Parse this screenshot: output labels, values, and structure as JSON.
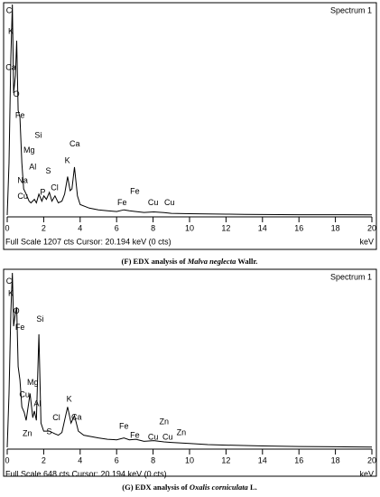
{
  "chart_data": [
    {
      "type": "line",
      "title": "Spectrum 1",
      "footer": "Full Scale 1207 cts  Cursor: 20.194 keV (0 cts)",
      "xlabel": "keV",
      "caption": [
        {
          "text": "(F) EDX analysis of "
        },
        {
          "text": "Malva neglecta",
          "italic": true
        },
        {
          "text": " Wallr."
        }
      ],
      "x": [
        0,
        0.1,
        0.2,
        0.28,
        0.35,
        0.45,
        0.52,
        0.6,
        0.7,
        0.8,
        0.9,
        1.04,
        1.2,
        1.3,
        1.49,
        1.6,
        1.74,
        1.9,
        2.01,
        2.15,
        2.31,
        2.45,
        2.62,
        2.8,
        3.0,
        3.15,
        3.31,
        3.45,
        3.55,
        3.69,
        3.85,
        4.0,
        4.5,
        5,
        5.5,
        6.0,
        6.4,
        6.7,
        7.06,
        7.5,
        8.04,
        8.6,
        9,
        10,
        11,
        12,
        13,
        14,
        16,
        18,
        20
      ],
      "values": [
        0,
        300,
        900,
        1207,
        700,
        800,
        1000,
        600,
        560,
        300,
        150,
        120,
        80,
        70,
        90,
        70,
        120,
        80,
        110,
        90,
        130,
        80,
        110,
        70,
        80,
        120,
        220,
        140,
        150,
        275,
        110,
        60,
        40,
        30,
        25,
        20,
        30,
        25,
        20,
        15,
        18,
        14,
        10,
        8,
        6,
        5,
        4,
        3,
        2,
        2,
        1
      ],
      "color": "#000000",
      "xlim": [
        0,
        20
      ],
      "xticks": [
        0,
        2,
        4,
        6,
        8,
        10,
        12,
        14,
        16,
        18,
        20
      ],
      "ylim": [
        0,
        1207
      ],
      "peaks": [
        {
          "label": "C",
          "x": 0.1,
          "y": 1170
        },
        {
          "label": "K",
          "x": 0.2,
          "y": 1050
        },
        {
          "label": "Ca",
          "x": 0.2,
          "y": 845
        },
        {
          "label": "O",
          "x": 0.5,
          "y": 690
        },
        {
          "label": "Fe",
          "x": 0.7,
          "y": 570
        },
        {
          "label": "Si",
          "x": 1.7,
          "y": 455
        },
        {
          "label": "Mg",
          "x": 1.2,
          "y": 370
        },
        {
          "label": "Al",
          "x": 1.4,
          "y": 275
        },
        {
          "label": "Na",
          "x": 0.85,
          "y": 195
        },
        {
          "label": "Cu",
          "x": 0.85,
          "y": 105
        },
        {
          "label": "P",
          "x": 1.95,
          "y": 130
        },
        {
          "label": "S",
          "x": 2.25,
          "y": 250
        },
        {
          "label": "Cl",
          "x": 2.6,
          "y": 155
        },
        {
          "label": "K",
          "x": 3.3,
          "y": 310
        },
        {
          "label": "Ca",
          "x": 3.7,
          "y": 405
        },
        {
          "label": "Fe",
          "x": 6.3,
          "y": 70
        },
        {
          "label": "Fe",
          "x": 7.0,
          "y": 135
        },
        {
          "label": "Cu",
          "x": 8.0,
          "y": 70
        },
        {
          "label": "Cu",
          "x": 8.9,
          "y": 70
        }
      ]
    },
    {
      "type": "line",
      "title": "Spectrum 1",
      "footer": "Full Scale 648 cts  Cursor: 20.194 keV (0 cts)",
      "xlabel": "keV",
      "caption": [
        {
          "text": "(G) EDX analysis of "
        },
        {
          "text": "Oxalis corniculata",
          "italic": true
        },
        {
          "text": " L."
        }
      ],
      "x": [
        0,
        0.1,
        0.2,
        0.28,
        0.35,
        0.45,
        0.52,
        0.6,
        0.7,
        0.8,
        0.93,
        1.04,
        1.25,
        1.4,
        1.49,
        1.6,
        1.74,
        1.85,
        2.0,
        2.31,
        2.62,
        2.8,
        3.0,
        3.31,
        3.5,
        3.69,
        3.9,
        4.2,
        5,
        5.5,
        6.0,
        6.4,
        6.7,
        7.06,
        7.5,
        8.04,
        8.6,
        9,
        10,
        11,
        12,
        14,
        16,
        18,
        20
      ],
      "values": [
        0,
        200,
        500,
        648,
        450,
        500,
        520,
        300,
        250,
        150,
        130,
        100,
        200,
        110,
        135,
        100,
        420,
        90,
        60,
        60,
        50,
        45,
        55,
        150,
        90,
        118,
        60,
        45,
        35,
        30,
        28,
        35,
        28,
        30,
        22,
        25,
        20,
        18,
        14,
        10,
        8,
        5,
        3,
        2,
        1
      ],
      "color": "#000000",
      "xlim": [
        0,
        20
      ],
      "xticks": [
        0,
        2,
        4,
        6,
        8,
        10,
        12,
        14,
        16,
        18,
        20
      ],
      "ylim": [
        0,
        648
      ],
      "peaks": [
        {
          "label": "C",
          "x": 0.1,
          "y": 615
        },
        {
          "label": "K",
          "x": 0.2,
          "y": 570
        },
        {
          "label": "O",
          "x": 0.5,
          "y": 505
        },
        {
          "label": "Fe",
          "x": 0.7,
          "y": 445
        },
        {
          "label": "Si",
          "x": 1.8,
          "y": 475
        },
        {
          "label": "Mg",
          "x": 1.4,
          "y": 240
        },
        {
          "label": "Cu",
          "x": 0.95,
          "y": 195
        },
        {
          "label": "Al",
          "x": 1.65,
          "y": 160
        },
        {
          "label": "Zn",
          "x": 1.1,
          "y": 50
        },
        {
          "label": "Cl",
          "x": 2.7,
          "y": 108
        },
        {
          "label": "S",
          "x": 2.3,
          "y": 57
        },
        {
          "label": "K",
          "x": 3.4,
          "y": 178
        },
        {
          "label": "Ca",
          "x": 3.8,
          "y": 110
        },
        {
          "label": "Fe",
          "x": 6.4,
          "y": 77
        },
        {
          "label": "Fe",
          "x": 7.0,
          "y": 44
        },
        {
          "label": "Cu",
          "x": 8.0,
          "y": 37
        },
        {
          "label": "Cu",
          "x": 8.8,
          "y": 37
        },
        {
          "label": "Zn",
          "x": 8.6,
          "y": 94
        },
        {
          "label": "Zn",
          "x": 9.55,
          "y": 54
        }
      ]
    }
  ]
}
